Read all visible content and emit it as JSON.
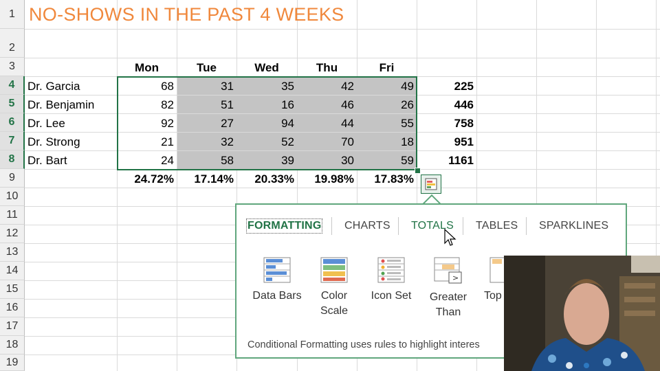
{
  "sheet": {
    "title": "NO-SHOWS IN THE PAST 4 WEEKS",
    "row_numbers": [
      "1",
      "2",
      "3",
      "4",
      "5",
      "6",
      "7",
      "8",
      "9",
      "10",
      "11",
      "12",
      "13",
      "14",
      "15",
      "16",
      "17",
      "18",
      "19"
    ],
    "day_headers": [
      "Mon",
      "Tue",
      "Wed",
      "Thu",
      "Fri"
    ],
    "doctors": [
      {
        "name": "Dr. Garcia",
        "values": [
          "68",
          "31",
          "35",
          "42",
          "49"
        ],
        "total": "225"
      },
      {
        "name": "Dr. Benjamin",
        "values": [
          "82",
          "51",
          "16",
          "46",
          "26"
        ],
        "total": "446"
      },
      {
        "name": "Dr. Lee",
        "values": [
          "92",
          "27",
          "94",
          "44",
          "55"
        ],
        "total": "758"
      },
      {
        "name": "Dr. Strong",
        "values": [
          "21",
          "32",
          "52",
          "70",
          "18"
        ],
        "total": "951"
      },
      {
        "name": "Dr. Bart",
        "values": [
          "24",
          "58",
          "39",
          "30",
          "59"
        ],
        "total": "1161"
      }
    ],
    "percentages": [
      "24.72%",
      "17.14%",
      "20.33%",
      "19.98%",
      "17.83%"
    ],
    "accent_color": "#217346",
    "title_color": "#f0883c"
  },
  "quick_analysis": {
    "button_icon": "quick-analysis-icon",
    "tabs": [
      "FORMATTING",
      "CHARTS",
      "TOTALS",
      "TABLES",
      "SPARKLINES"
    ],
    "active_tab": "FORMATTING",
    "options": [
      {
        "label": "Data Bars",
        "icon": "data-bars-icon"
      },
      {
        "label": "Color\nScale",
        "icon": "color-scale-icon"
      },
      {
        "label": "Icon Set",
        "icon": "icon-set-icon"
      },
      {
        "label": "Greater\nThan",
        "icon": "greater-than-icon"
      },
      {
        "label": "Top",
        "icon": "top-icon"
      }
    ],
    "description": "Conditional Formatting uses rules to highlight interes"
  },
  "webcam": {
    "icon": "webcam-presenter-image"
  }
}
